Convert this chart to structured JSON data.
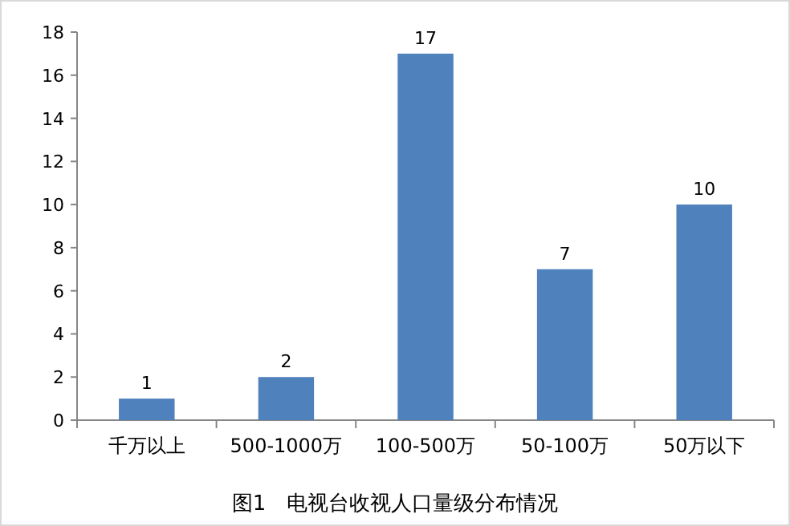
{
  "chart_data": {
    "type": "bar",
    "title": "图1　电视台收视人口量级分布情况",
    "categories": [
      "千万以上",
      "500-1000万",
      "100-500万",
      "50-100万",
      "50万以下"
    ],
    "values": [
      1,
      2,
      17,
      7,
      10
    ],
    "color": "#4f81bd",
    "ylim": [
      0,
      18
    ],
    "yticks": [
      0,
      2,
      4,
      6,
      8,
      10,
      12,
      14,
      16,
      18
    ],
    "grid": false,
    "data_labels": true
  }
}
